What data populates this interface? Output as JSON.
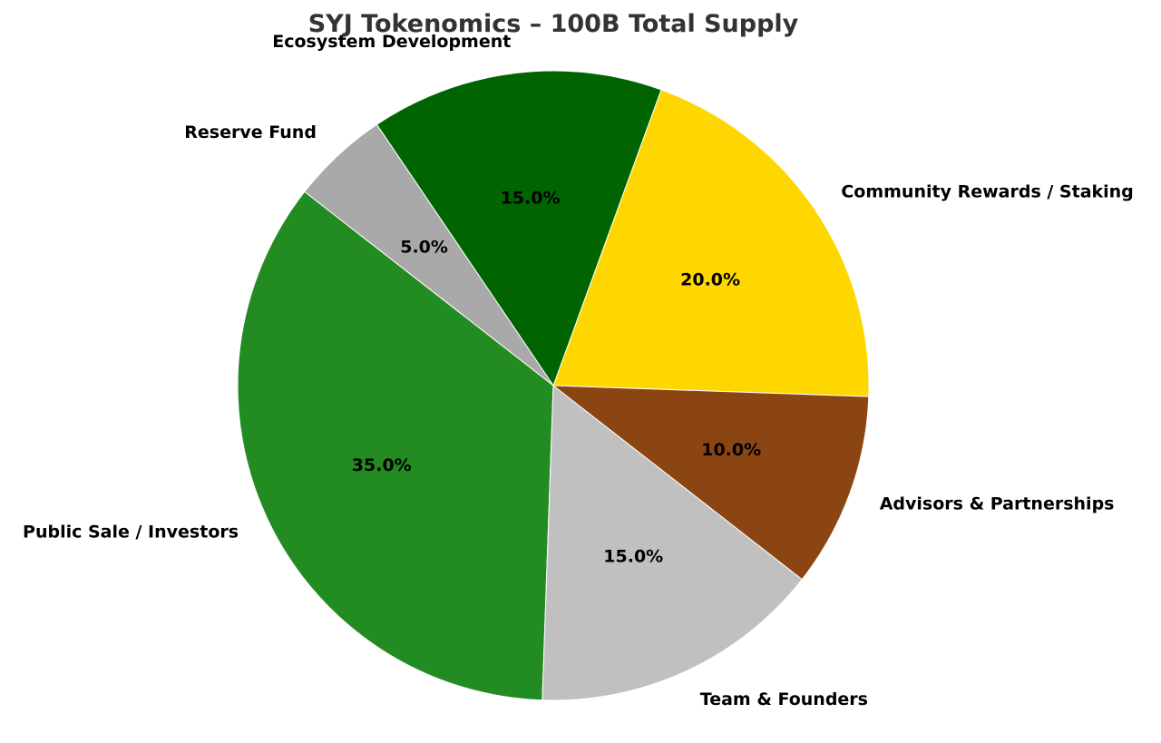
{
  "chart_data": {
    "type": "pie",
    "title": "SYJ Tokenomics – 100B Total Supply",
    "slices": [
      {
        "label": "Community Rewards / Staking",
        "value": 20.0,
        "pct_label": "20.0%",
        "color": "#FFD700"
      },
      {
        "label": "Ecosystem Development",
        "value": 15.0,
        "pct_label": "15.0%",
        "color": "#006400"
      },
      {
        "label": "Reserve Fund",
        "value": 5.0,
        "pct_label": "5.0%",
        "color": "#A9A9A9"
      },
      {
        "label": "Public Sale / Investors",
        "value": 35.0,
        "pct_label": "35.0%",
        "color": "#228B22"
      },
      {
        "label": "Team & Founders",
        "value": 15.0,
        "pct_label": "15.0%",
        "color": "#C0C0C0"
      },
      {
        "label": "Advisors & Partnerships",
        "value": 10.0,
        "pct_label": "10.0%",
        "color": "#8B4513"
      }
    ]
  }
}
